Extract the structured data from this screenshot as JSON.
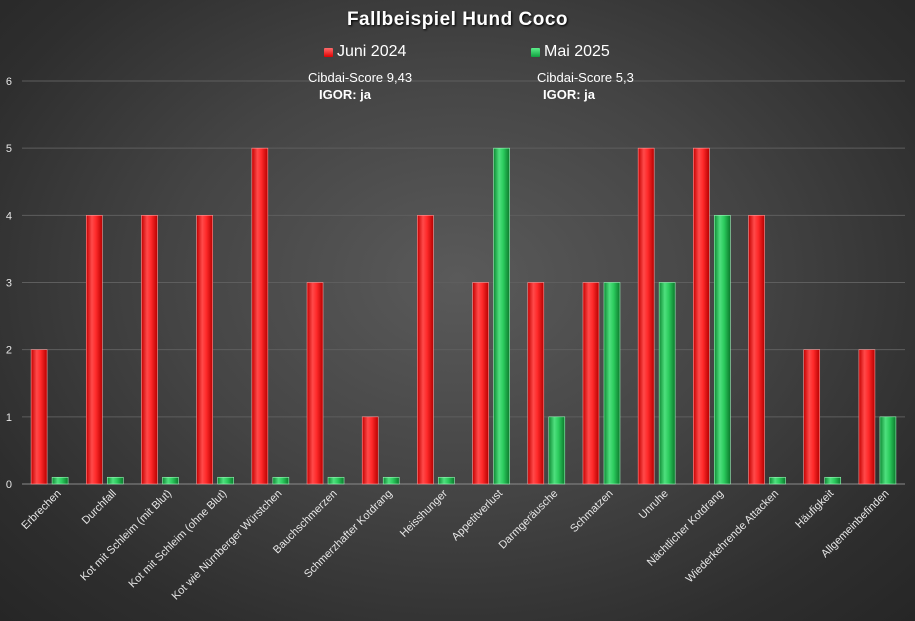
{
  "chart_data": {
    "type": "bar",
    "title": "Fallbeispiel Hund Coco",
    "xlabel": "",
    "ylabel": "",
    "ylim": [
      0,
      6
    ],
    "y_ticks": [
      "0",
      "1",
      "2",
      "3",
      "4",
      "5",
      "6"
    ],
    "grid": true,
    "legend_position": "top",
    "categories": [
      "Erbrechen",
      "Durchfall",
      "Kot mit Schleim (mit Blut)",
      "Kot mit Schleim (ohne Blut)",
      "Kot wie Nürnberger Würstchen",
      "Bauchschmerzen",
      "Schmerzhafter Kotdrang",
      "Heisshunger",
      "Appetitverlust",
      "Darmgeräusche",
      "Schmatzen",
      "Unruhe",
      "Nächtlicher Kotdrang",
      "Wiederkehrende Attacken",
      "Häufigkeit",
      "Allgemeinbefinden"
    ],
    "series": [
      {
        "name": "Juni 2024",
        "color": "#ff2020",
        "values": [
          2,
          4,
          4,
          4,
          5,
          3,
          1,
          4,
          3,
          3,
          3,
          5,
          5,
          4,
          2,
          2
        ]
      },
      {
        "name": "Mai 2025",
        "color": "#20c050",
        "values": [
          0.1,
          0.1,
          0.1,
          0.1,
          0.1,
          0.1,
          0.1,
          0.1,
          5,
          1,
          3,
          3,
          4,
          0.1,
          0.1,
          1
        ]
      }
    ],
    "annotations": {
      "score_2024": "Cibdai-Score 9,43",
      "igor_2024": "IGOR: ja",
      "score_2025": "Cibdai-Score 5,3",
      "igor_2025": "IGOR: ja"
    }
  }
}
